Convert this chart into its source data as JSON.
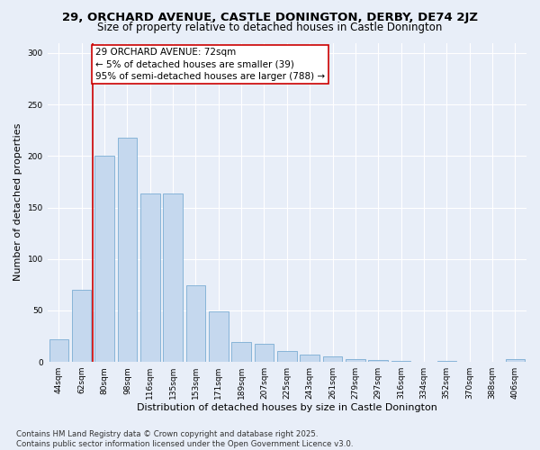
{
  "title1": "29, ORCHARD AVENUE, CASTLE DONINGTON, DERBY, DE74 2JZ",
  "title2": "Size of property relative to detached houses in Castle Donington",
  "xlabel": "Distribution of detached houses by size in Castle Donington",
  "ylabel": "Number of detached properties",
  "categories": [
    "44sqm",
    "62sqm",
    "80sqm",
    "98sqm",
    "116sqm",
    "135sqm",
    "153sqm",
    "171sqm",
    "189sqm",
    "207sqm",
    "225sqm",
    "243sqm",
    "261sqm",
    "279sqm",
    "297sqm",
    "316sqm",
    "334sqm",
    "352sqm",
    "370sqm",
    "388sqm",
    "406sqm"
  ],
  "values": [
    22,
    70,
    200,
    218,
    164,
    164,
    74,
    49,
    19,
    18,
    11,
    7,
    5,
    3,
    2,
    1,
    0,
    1,
    0,
    0,
    3
  ],
  "bar_color": "#c5d8ee",
  "bar_edge_color": "#7aadd4",
  "vline_x": 1.5,
  "vline_color": "#cc0000",
  "annotation_text": "29 ORCHARD AVENUE: 72sqm\n← 5% of detached houses are smaller (39)\n95% of semi-detached houses are larger (788) →",
  "annotation_box_color": "#ffffff",
  "annotation_box_edge": "#cc0000",
  "ylim": [
    0,
    310
  ],
  "yticks": [
    0,
    50,
    100,
    150,
    200,
    250,
    300
  ],
  "bg_color": "#e8eef8",
  "plot_bg_color": "#e8eef8",
  "footer1": "Contains HM Land Registry data © Crown copyright and database right 2025.",
  "footer2": "Contains public sector information licensed under the Open Government Licence v3.0.",
  "title1_fontsize": 9.5,
  "title2_fontsize": 8.5,
  "xlabel_fontsize": 8,
  "ylabel_fontsize": 8,
  "tick_fontsize": 6.5,
  "annotation_fontsize": 7.5,
  "footer_fontsize": 6.2
}
